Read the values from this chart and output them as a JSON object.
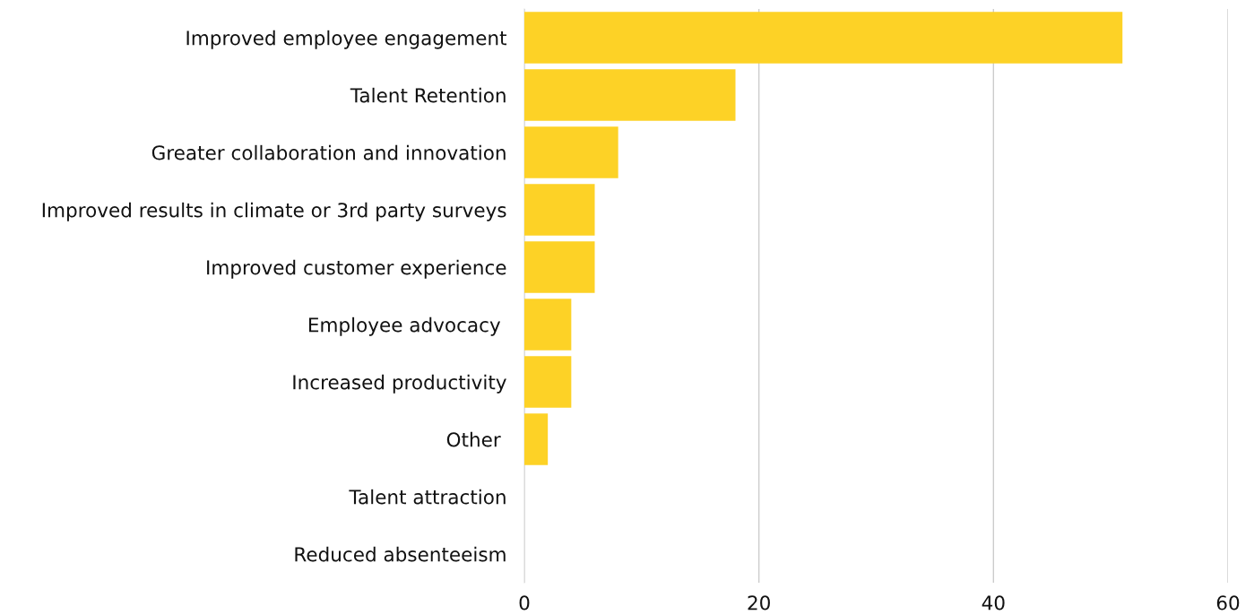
{
  "chart_data": {
    "type": "bar",
    "orientation": "horizontal",
    "categories": [
      "Improved employee engagement",
      "Talent Retention",
      "Greater collaboration and innovation",
      "Improved results in climate or 3rd party surveys",
      "Improved customer experience",
      "Employee advocacy ",
      "Increased productivity",
      "Other ",
      "Talent attraction",
      "Reduced absenteeism"
    ],
    "values": [
      51,
      18,
      8,
      6,
      6,
      4,
      4,
      2,
      0,
      0
    ],
    "color": "#fdd226",
    "xlim": [
      0,
      60
    ],
    "xticks": [
      0,
      20,
      40,
      60
    ],
    "grid": "x"
  }
}
